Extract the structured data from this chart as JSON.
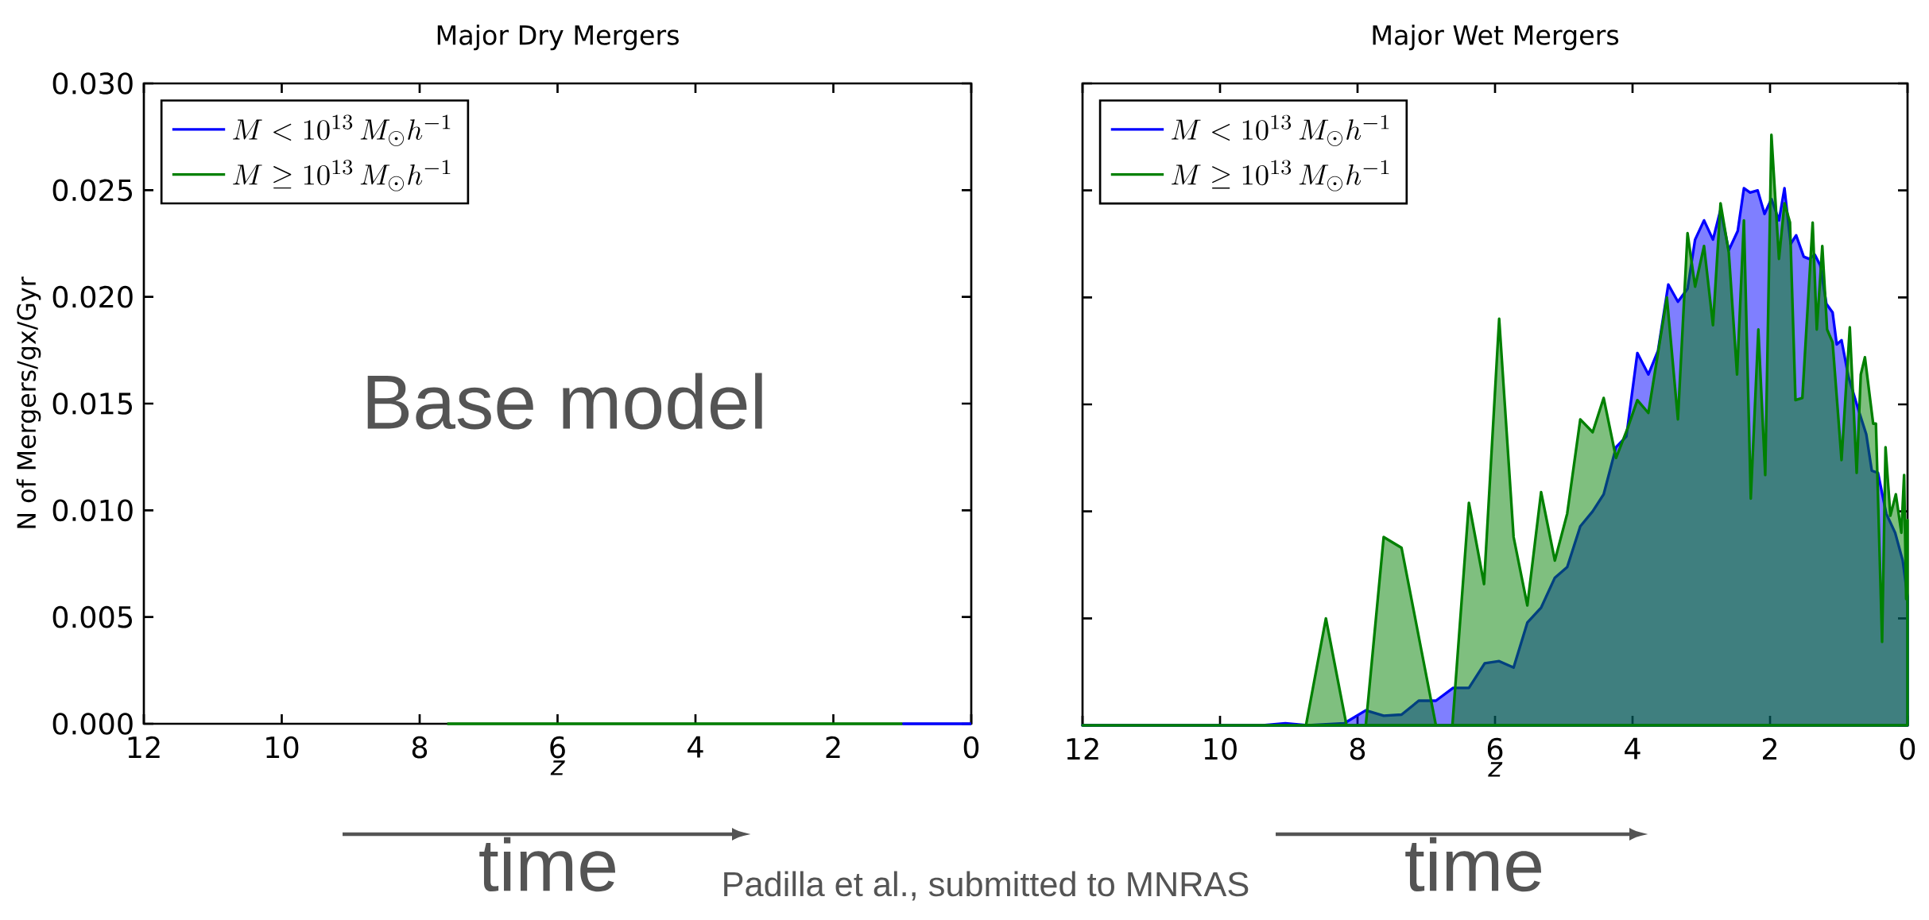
{
  "chart_data": [
    {
      "type": "line",
      "title": "Major Dry Mergers",
      "xlabel": "z",
      "ylabel": "N of Mergers/gx/Gyr",
      "xlim": [
        12,
        0
      ],
      "xticks": [
        12,
        10,
        8,
        6,
        4,
        2,
        0
      ],
      "ylim": [
        0,
        0.03
      ],
      "yticks": [
        {
          "value": 0,
          "label": "0.000"
        },
        {
          "value": 0.005,
          "label": "0.005"
        },
        {
          "value": 0.01,
          "label": "0.010"
        },
        {
          "value": 0.015,
          "label": "0.015"
        },
        {
          "value": 0.02,
          "label": "0.020"
        },
        {
          "value": 0.025,
          "label": "0.025"
        },
        {
          "value": 0.03,
          "label": "0.030"
        }
      ],
      "legend": "top left",
      "series": [
        {
          "name": "M<10^{13}\\,M_{\\odot}h^{-1}",
          "color": "#0000ff",
          "x": [
            1,
            0
          ],
          "values": [
            0,
            0
          ]
        },
        {
          "name": "M\\geq 10^{13}\\,M_{\\odot}h^{-1}",
          "color": "#008000",
          "x": [
            7.6,
            1
          ],
          "values": [
            0,
            0
          ]
        }
      ],
      "annotations": [
        "Base model",
        "time",
        "Padilla et al., submitted to MNRAS"
      ]
    },
    {
      "type": "area",
      "title": "Major Wet Mergers",
      "xlabel": "z",
      "xlim": [
        12,
        0
      ],
      "xticks": [
        12,
        10,
        8,
        6,
        4,
        2,
        0
      ],
      "ylim": [
        0,
        0.03
      ],
      "yticks": [
        0,
        0.005,
        0.01,
        0.015,
        0.02,
        0.025,
        0.03
      ],
      "tick_labels": "x",
      "legend": "top left",
      "series": [
        {
          "name": "M<10^{13}\\,M_{\\odot}h^{-1}",
          "color": "#0000ff",
          "x": [
            12,
            9.38,
            9.05,
            8.73,
            8.19,
            7.88,
            7.62,
            7.36,
            7.11,
            6.86,
            6.61,
            6.38,
            6.15,
            5.94,
            5.73,
            5.53,
            5.33,
            5.13,
            4.95,
            4.76,
            4.58,
            4.42,
            4.24,
            4.09,
            3.93,
            3.77,
            3.63,
            3.48,
            3.34,
            3.2,
            3.09,
            2.96,
            2.83,
            2.72,
            2.6,
            2.47,
            2.38,
            2.29,
            2.18,
            2.08,
            1.98,
            1.87,
            1.79,
            1.7,
            1.62,
            1.51,
            1.43,
            1.35,
            1.27,
            1.18,
            1.09,
            1.03,
            0.96,
            0.86,
            0.71,
            0.6,
            0.52,
            0.43,
            0.31,
            0.18,
            0.07,
            0
          ],
          "values": [
            0,
            0,
            0.0001,
            0,
            0.0001,
            0.0007,
            0.00045,
            0.0005,
            0.00115,
            0.00115,
            0.00175,
            0.00175,
            0.0029,
            0.003,
            0.0027,
            0.0048,
            0.0055,
            0.0069,
            0.0074,
            0.0093,
            0.01,
            0.0108,
            0.013,
            0.0135,
            0.0174,
            0.0164,
            0.0175,
            0.0206,
            0.0198,
            0.0204,
            0.0227,
            0.0236,
            0.0227,
            0.0241,
            0.0222,
            0.0231,
            0.0251,
            0.0249,
            0.025,
            0.0239,
            0.0246,
            0.0236,
            0.0251,
            0.0225,
            0.0229,
            0.0219,
            0.0218,
            0.022,
            0.0215,
            0.0197,
            0.0193,
            0.0178,
            0.018,
            0.0163,
            0.0147,
            0.0136,
            0.0119,
            0.0118,
            0.0099,
            0.009,
            0.0077,
            0.006
          ]
        },
        {
          "name": "M\\geq 10^{13}\\,M_{\\odot}h^{-1}",
          "color": "#008000",
          "x": [
            12,
            8.75,
            8.46,
            8.16,
            7.88,
            7.62,
            7.36,
            6.86,
            6.62,
            6.38,
            6.16,
            5.94,
            5.73,
            5.53,
            5.33,
            5.13,
            4.95,
            4.76,
            4.58,
            4.42,
            4.24,
            4.07,
            3.93,
            3.77,
            3.5,
            3.34,
            3.2,
            3.09,
            2.96,
            2.83,
            2.72,
            2.6,
            2.48,
            2.38,
            2.28,
            2.17,
            2.07,
            1.98,
            1.87,
            1.79,
            1.71,
            1.63,
            1.53,
            1.38,
            1.32,
            1.24,
            1.17,
            1.09,
            0.96,
            0.84,
            0.74,
            0.68,
            0.62,
            0.5,
            0.46,
            0.37,
            0.32,
            0.25,
            0.17,
            0.09,
            0.05,
            0.02,
            0
          ],
          "values": [
            0,
            0,
            0.005,
            0,
            0,
            0.0088,
            0.0083,
            0,
            0,
            0.0104,
            0.0066,
            0.019,
            0.0088,
            0.0056,
            0.0109,
            0.0077,
            0.0099,
            0.0143,
            0.0137,
            0.0153,
            0.0125,
            0.0139,
            0.0152,
            0.0146,
            0.02,
            0.0143,
            0.023,
            0.0205,
            0.0224,
            0.0187,
            0.0244,
            0.0221,
            0.0164,
            0.0236,
            0.0106,
            0.0185,
            0.0117,
            0.0276,
            0.0218,
            0.0244,
            0.0235,
            0.0152,
            0.0153,
            0.0235,
            0.0185,
            0.0224,
            0.0185,
            0.0179,
            0.0124,
            0.0186,
            0.0118,
            0.0164,
            0.0172,
            0.0141,
            0.0141,
            0.0039,
            0.013,
            0.0098,
            0.0108,
            0.009,
            0.0117,
            0.0059,
            0.0096
          ]
        }
      ],
      "annotations": [
        "time"
      ]
    }
  ]
}
